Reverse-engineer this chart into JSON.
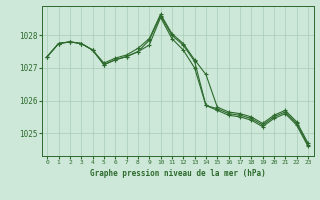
{
  "title": "Graphe pression niveau de la mer (hPa)",
  "xlabel_ticks": [
    0,
    1,
    2,
    3,
    4,
    5,
    6,
    7,
    8,
    9,
    10,
    11,
    12,
    13,
    14,
    15,
    16,
    17,
    18,
    19,
    20,
    21,
    22,
    23
  ],
  "ylim": [
    1024.3,
    1028.9
  ],
  "yticks": [
    1025,
    1026,
    1027,
    1028
  ],
  "background_color": "#cde8d8",
  "grid_color": "#a8ccb8",
  "line_color": "#2d6a2d",
  "series": [
    [
      1027.35,
      1027.75,
      1027.8,
      1027.75,
      1027.55,
      1027.1,
      1027.25,
      1027.35,
      1027.5,
      1027.85,
      1028.6,
      1028.0,
      1027.7,
      1027.2,
      1025.85,
      1025.75,
      1025.6,
      1025.55,
      1025.45,
      1025.25,
      1025.5,
      1025.65,
      1025.3,
      1024.65
    ],
    [
      1027.35,
      1027.75,
      1027.8,
      1027.75,
      1027.55,
      1027.1,
      1027.25,
      1027.35,
      1027.5,
      1027.7,
      1028.55,
      1027.9,
      1027.55,
      1027.0,
      1025.85,
      1025.7,
      1025.55,
      1025.5,
      1025.4,
      1025.2,
      1025.45,
      1025.6,
      1025.25,
      1024.6
    ],
    [
      1027.35,
      1027.75,
      1027.8,
      1027.75,
      1027.55,
      1027.15,
      1027.3,
      1027.4,
      1027.6,
      1027.9,
      1028.65,
      1028.05,
      1027.75,
      1027.25,
      1026.8,
      1025.8,
      1025.65,
      1025.6,
      1025.5,
      1025.3,
      1025.55,
      1025.7,
      1025.35,
      1024.7
    ]
  ],
  "marker": "+",
  "markersize": 3,
  "linewidth": 0.8,
  "figsize": [
    3.2,
    2.0
  ],
  "dpi": 100
}
